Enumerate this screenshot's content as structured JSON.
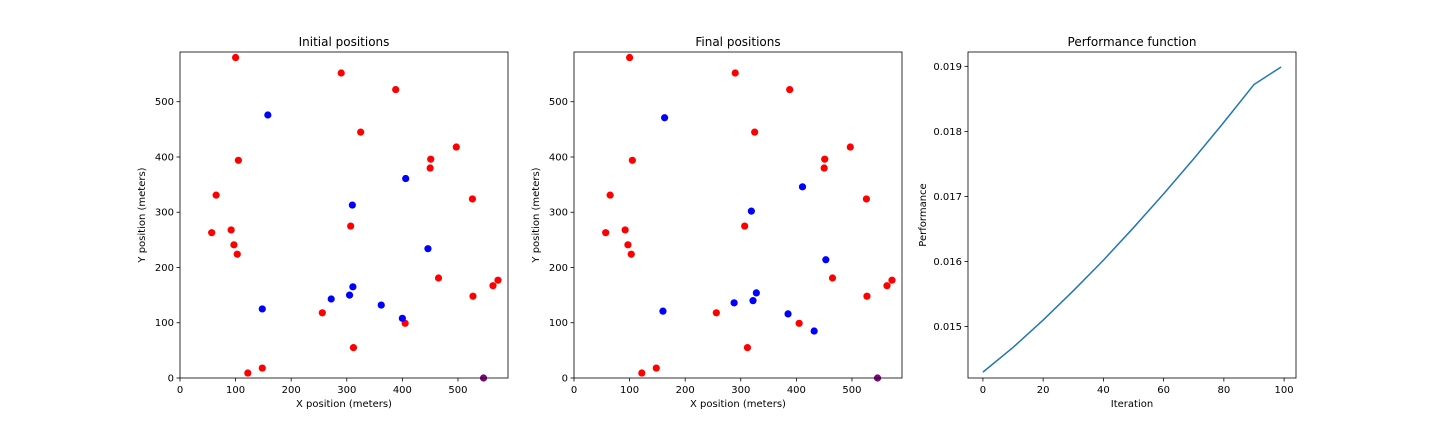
{
  "chart_data": [
    {
      "type": "scatter",
      "title": "Initial positions",
      "xlabel": "X position (meters)",
      "ylabel": "Y position (meters)",
      "xlim": [
        0,
        590
      ],
      "ylim": [
        0,
        590
      ],
      "xticks": [
        0,
        100,
        200,
        300,
        400,
        500
      ],
      "yticks": [
        0,
        100,
        200,
        300,
        400,
        500
      ],
      "grid": false,
      "series": [
        {
          "color": "#ff0000",
          "points": [
            [
              100,
              580
            ],
            [
              290,
              552
            ],
            [
              388,
              522
            ],
            [
              325,
              445
            ],
            [
              105,
              394
            ],
            [
              451,
              396
            ],
            [
              497,
              418
            ],
            [
              450,
              380
            ],
            [
              65,
              331
            ],
            [
              526,
              324
            ],
            [
              92,
              268
            ],
            [
              307,
              275
            ],
            [
              57,
              263
            ],
            [
              97,
              241
            ],
            [
              103,
              224
            ],
            [
              465,
              181
            ],
            [
              572,
              177
            ],
            [
              563,
              167
            ],
            [
              527,
              148
            ],
            [
              256,
              118
            ],
            [
              405,
              99
            ],
            [
              312,
              55
            ],
            [
              148,
              18
            ],
            [
              122,
              9
            ]
          ]
        },
        {
          "color": "#0000ff",
          "points": [
            [
              158,
              476
            ],
            [
              406,
              361
            ],
            [
              310,
              313
            ],
            [
              446,
              234
            ],
            [
              311,
              165
            ],
            [
              272,
              143
            ],
            [
              305,
              150
            ],
            [
              362,
              132
            ],
            [
              148,
              125
            ],
            [
              400,
              108
            ]
          ]
        },
        {
          "color": "#800080",
          "points": [
            [
              546,
              0
            ]
          ]
        }
      ]
    },
    {
      "type": "scatter",
      "title": "Final positions",
      "xlabel": "X position (meters)",
      "ylabel": "Y position (meters)",
      "xlim": [
        0,
        590
      ],
      "ylim": [
        0,
        590
      ],
      "xticks": [
        0,
        100,
        200,
        300,
        400,
        500
      ],
      "yticks": [
        0,
        100,
        200,
        300,
        400,
        500
      ],
      "grid": false,
      "series": [
        {
          "color": "#ff0000",
          "points": [
            [
              100,
              580
            ],
            [
              290,
              552
            ],
            [
              388,
              522
            ],
            [
              325,
              445
            ],
            [
              105,
              394
            ],
            [
              451,
              396
            ],
            [
              497,
              418
            ],
            [
              450,
              380
            ],
            [
              65,
              331
            ],
            [
              526,
              324
            ],
            [
              92,
              268
            ],
            [
              307,
              275
            ],
            [
              57,
              263
            ],
            [
              97,
              241
            ],
            [
              103,
              224
            ],
            [
              465,
              181
            ],
            [
              572,
              177
            ],
            [
              563,
              167
            ],
            [
              527,
              148
            ],
            [
              256,
              118
            ],
            [
              405,
              99
            ],
            [
              312,
              55
            ],
            [
              148,
              18
            ],
            [
              122,
              9
            ]
          ]
        },
        {
          "color": "#0000ff",
          "points": [
            [
              163,
              471
            ],
            [
              411,
              346
            ],
            [
              319,
              302
            ],
            [
              453,
              214
            ],
            [
              328,
              154
            ],
            [
              288,
              136
            ],
            [
              322,
              140
            ],
            [
              385,
              116
            ],
            [
              160,
              121
            ],
            [
              432,
              85
            ]
          ]
        },
        {
          "color": "#800080",
          "points": [
            [
              546,
              0
            ]
          ]
        }
      ]
    },
    {
      "type": "line",
      "title": "Performance function",
      "xlabel": "Iteration",
      "ylabel": "Performance",
      "xlim": [
        -4.95,
        103.95
      ],
      "ylim": [
        0.01421,
        0.01922
      ],
      "xticks": [
        0,
        20,
        40,
        60,
        80,
        100
      ],
      "yticks": [
        "0.015",
        "0.016",
        "0.017",
        "0.018",
        "0.019"
      ],
      "grid": false,
      "series": [
        {
          "color": "#1f77b4",
          "points": [
            [
              0,
              0.0143
            ],
            [
              10,
              0.01468
            ],
            [
              20,
              0.0151
            ],
            [
              30,
              0.01555
            ],
            [
              40,
              0.01602
            ],
            [
              50,
              0.01652
            ],
            [
              60,
              0.01704
            ],
            [
              70,
              0.01758
            ],
            [
              80,
              0.01814
            ],
            [
              90,
              0.01872
            ],
            [
              99,
              0.01899
            ]
          ]
        }
      ]
    }
  ]
}
